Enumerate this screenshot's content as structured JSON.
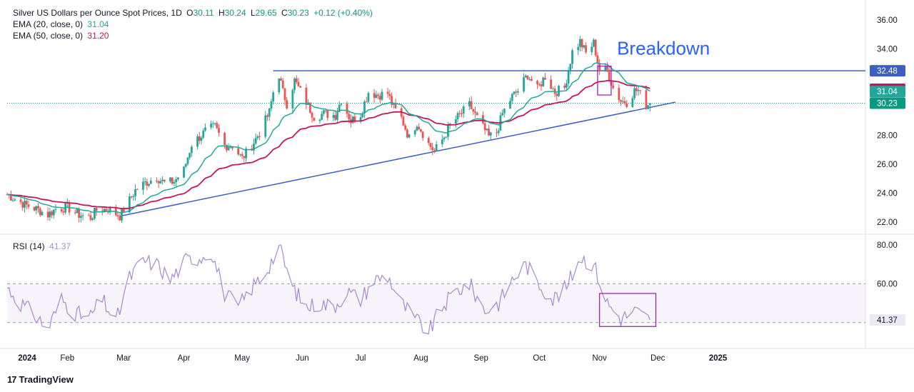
{
  "header": {
    "symbol_title": "Silver US Dollars per Ounce Spot Prices, 1D",
    "open_label": "O",
    "open": "30.11",
    "high_label": "H",
    "high": "30.24",
    "low_label": "L",
    "low": "29.65",
    "close_label": "C",
    "close": "30.23",
    "change": "+0.12 (+0.40%)",
    "ema20_label": "EMA (20, close, 0)",
    "ema20_value": "31.04",
    "ema50_label": "EMA (50, close, 0)",
    "ema50_value": "31.20"
  },
  "rsi_legend": {
    "label": "RSI (14)",
    "value": "41.37"
  },
  "annotation": {
    "text": "Breakdown"
  },
  "price_axis": {
    "ticks": [
      "36.00",
      "34.00",
      "32.48",
      "31.20",
      "31.04",
      "30.23",
      "28.00",
      "26.00",
      "24.00",
      "22.00"
    ]
  },
  "rsi_axis": {
    "ticks": [
      "80.00",
      "60.00",
      "41.37"
    ]
  },
  "x_axis": {
    "ticks": [
      "2024",
      "Feb",
      "Mar",
      "Apr",
      "May",
      "Jun",
      "Jul",
      "Aug",
      "Sep",
      "Oct",
      "Nov",
      "Dec",
      "2025"
    ]
  },
  "branding": {
    "text": "TradingView"
  },
  "colors": {
    "up": "#26a69a",
    "down": "#ef5350",
    "ema20": "#26a69a",
    "ema50": "#c2185b",
    "trendline": "#3d5fc4",
    "rsi": "#a48bd0",
    "box": "#9c27b0",
    "last_price": "#089981"
  },
  "chart_data": [
    {
      "type": "candlestick",
      "title": "Silver US Dollars per Ounce Spot Prices, 1D",
      "ylim": [
        21,
        36.5
      ],
      "price_tags": [
        {
          "label": "32.48",
          "value": 32.48,
          "color": "#3d5fc4"
        },
        {
          "label": "31.20",
          "value": 31.2,
          "color": "#c2185b"
        },
        {
          "label": "31.04",
          "value": 31.04,
          "color": "#26a69a"
        },
        {
          "label": "30.23",
          "value": 30.23,
          "color": "#089981"
        }
      ],
      "price_path": [
        [
          "2024-01-01",
          23.9
        ],
        [
          "2024-01-05",
          23.6
        ],
        [
          "2024-01-10",
          23.2
        ],
        [
          "2024-01-16",
          22.9
        ],
        [
          "2024-01-22",
          22.5
        ],
        [
          "2024-01-26",
          22.9
        ],
        [
          "2024-02-01",
          23.0
        ],
        [
          "2024-02-07",
          22.5
        ],
        [
          "2024-02-13",
          22.3
        ],
        [
          "2024-02-16",
          22.8
        ],
        [
          "2024-02-22",
          22.9
        ],
        [
          "2024-02-28",
          22.4
        ],
        [
          "2024-03-04",
          23.5
        ],
        [
          "2024-03-07",
          24.2
        ],
        [
          "2024-03-12",
          24.7
        ],
        [
          "2024-03-18",
          25.1
        ],
        [
          "2024-03-22",
          24.7
        ],
        [
          "2024-03-27",
          24.8
        ],
        [
          "2024-04-01",
          25.6
        ],
        [
          "2024-04-05",
          27.4
        ],
        [
          "2024-04-10",
          28.0
        ],
        [
          "2024-04-12",
          28.3
        ],
        [
          "2024-04-17",
          28.6
        ],
        [
          "2024-04-22",
          27.3
        ],
        [
          "2024-04-26",
          27.3
        ],
        [
          "2024-05-01",
          26.4
        ],
        [
          "2024-05-06",
          27.3
        ],
        [
          "2024-05-10",
          28.2
        ],
        [
          "2024-05-15",
          29.6
        ],
        [
          "2024-05-17",
          31.0
        ],
        [
          "2024-05-20",
          32.2
        ],
        [
          "2024-05-22",
          31.0
        ],
        [
          "2024-05-24",
          30.2
        ],
        [
          "2024-05-28",
          31.8
        ],
        [
          "2024-06-03",
          30.3
        ],
        [
          "2024-06-07",
          29.3
        ],
        [
          "2024-06-12",
          29.5
        ],
        [
          "2024-06-18",
          29.4
        ],
        [
          "2024-06-21",
          30.5
        ],
        [
          "2024-06-26",
          29.0
        ],
        [
          "2024-07-01",
          29.5
        ],
        [
          "2024-07-05",
          31.0
        ],
        [
          "2024-07-10",
          30.8
        ],
        [
          "2024-07-15",
          30.9
        ],
        [
          "2024-07-18",
          29.9
        ],
        [
          "2024-07-22",
          29.2
        ],
        [
          "2024-07-26",
          27.8
        ],
        [
          "2024-07-30",
          28.9
        ],
        [
          "2024-08-05",
          27.4
        ],
        [
          "2024-08-08",
          26.9
        ],
        [
          "2024-08-13",
          27.9
        ],
        [
          "2024-08-16",
          28.7
        ],
        [
          "2024-08-21",
          29.4
        ],
        [
          "2024-08-26",
          30.1
        ],
        [
          "2024-08-30",
          29.2
        ],
        [
          "2024-09-05",
          27.9
        ],
        [
          "2024-09-09",
          28.2
        ],
        [
          "2024-09-12",
          29.5
        ],
        [
          "2024-09-17",
          30.7
        ],
        [
          "2024-09-20",
          31.1
        ],
        [
          "2024-09-25",
          32.2
        ],
        [
          "2024-09-30",
          31.2
        ],
        [
          "2024-10-04",
          32.1
        ],
        [
          "2024-10-09",
          31.0
        ],
        [
          "2024-10-14",
          31.3
        ],
        [
          "2024-10-18",
          33.8
        ],
        [
          "2024-10-22",
          34.5
        ],
        [
          "2024-10-25",
          33.7
        ],
        [
          "2024-10-29",
          34.4
        ],
        [
          "2024-11-01",
          32.5
        ],
        [
          "2024-11-05",
          32.5
        ],
        [
          "2024-11-08",
          31.3
        ],
        [
          "2024-11-12",
          30.4
        ],
        [
          "2024-11-15",
          30.3
        ],
        [
          "2024-11-19",
          31.1
        ],
        [
          "2024-11-21",
          31.1
        ],
        [
          "2024-11-25",
          30.1
        ],
        [
          "2024-11-27",
          30.2
        ]
      ],
      "last_candle": {
        "open": 30.11,
        "high": 30.24,
        "low": 29.65,
        "close": 30.23
      },
      "series": [
        {
          "name": "EMA (20, close, 0)",
          "last": 31.04
        },
        {
          "name": "EMA (50, close, 0)",
          "last": 31.2
        }
      ],
      "horizontal_line": {
        "value": 32.48,
        "from": "2024-05-17"
      },
      "trendline": {
        "from": [
          "2024-02-28",
          22.4
        ],
        "to": [
          "2024-12-10",
          30.3
        ]
      },
      "annotation": {
        "text": "Breakdown",
        "date": "2024-11-10",
        "value": 33.6
      },
      "highlight_box": {
        "from": "2024-10-31",
        "to": "2024-11-07",
        "low": 30.8,
        "high": 32.8
      }
    },
    {
      "type": "line",
      "title": "RSI (14)",
      "ylim": [
        28,
        85
      ],
      "bands": [
        40,
        60
      ],
      "last": 41.37,
      "rsi_path": [
        [
          "2024-01-01",
          58
        ],
        [
          "2024-01-08",
          50
        ],
        [
          "2024-01-15",
          44
        ],
        [
          "2024-01-22",
          37
        ],
        [
          "2024-01-29",
          52
        ],
        [
          "2024-02-05",
          45
        ],
        [
          "2024-02-12",
          42
        ],
        [
          "2024-02-19",
          52
        ],
        [
          "2024-02-26",
          40
        ],
        [
          "2024-03-04",
          63
        ],
        [
          "2024-03-11",
          72
        ],
        [
          "2024-03-18",
          70
        ],
        [
          "2024-03-25",
          62
        ],
        [
          "2024-04-02",
          72
        ],
        [
          "2024-04-10",
          74
        ],
        [
          "2024-04-15",
          77
        ],
        [
          "2024-04-22",
          55
        ],
        [
          "2024-04-29",
          48
        ],
        [
          "2024-05-06",
          58
        ],
        [
          "2024-05-13",
          66
        ],
        [
          "2024-05-20",
          79
        ],
        [
          "2024-05-27",
          58
        ],
        [
          "2024-06-03",
          48
        ],
        [
          "2024-06-10",
          50
        ],
        [
          "2024-06-17",
          48
        ],
        [
          "2024-06-24",
          56
        ],
        [
          "2024-07-01",
          52
        ],
        [
          "2024-07-08",
          62
        ],
        [
          "2024-07-15",
          64
        ],
        [
          "2024-07-22",
          50
        ],
        [
          "2024-07-29",
          42
        ],
        [
          "2024-08-05",
          35
        ],
        [
          "2024-08-12",
          48
        ],
        [
          "2024-08-19",
          56
        ],
        [
          "2024-08-26",
          60
        ],
        [
          "2024-09-03",
          46
        ],
        [
          "2024-09-10",
          50
        ],
        [
          "2024-09-17",
          62
        ],
        [
          "2024-09-24",
          70
        ],
        [
          "2024-10-01",
          60
        ],
        [
          "2024-10-08",
          52
        ],
        [
          "2024-10-15",
          58
        ],
        [
          "2024-10-22",
          74
        ],
        [
          "2024-10-29",
          70
        ],
        [
          "2024-11-05",
          50
        ],
        [
          "2024-11-12",
          42
        ],
        [
          "2024-11-19",
          46
        ],
        [
          "2024-11-27",
          41.37
        ]
      ],
      "highlight_box": {
        "from": "2024-11-01",
        "to": "2024-11-30",
        "low": 38,
        "high": 55
      }
    }
  ]
}
